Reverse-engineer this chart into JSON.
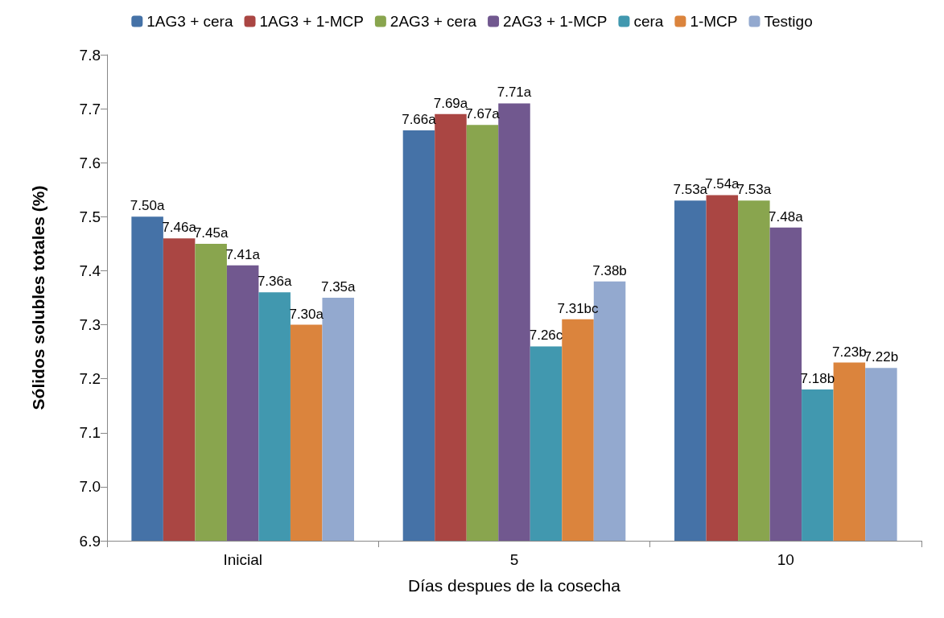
{
  "chart_data": {
    "type": "bar",
    "xlabel": "Días despues de la cosecha",
    "ylabel": "Sólidos solubles totales (%)",
    "categories": [
      "Inicial",
      "5",
      "10"
    ],
    "series": [
      {
        "name": "1AG3 + cera",
        "color": "#4572a7",
        "values": [
          7.5,
          7.66,
          7.53
        ],
        "value_labels": [
          "7.50a",
          "7.66a",
          "7.53a"
        ]
      },
      {
        "name": "1AG3 + 1-MCP",
        "color": "#aa4643",
        "values": [
          7.46,
          7.69,
          7.54
        ],
        "value_labels": [
          "7.46a",
          "7.69a",
          "7.54a"
        ]
      },
      {
        "name": "2AG3 + cera",
        "color": "#89a54e",
        "values": [
          7.45,
          7.67,
          7.53
        ],
        "value_labels": [
          "7.45a",
          "7.67a",
          "7.53a"
        ]
      },
      {
        "name": "2AG3 + 1-MCP",
        "color": "#71588f",
        "values": [
          7.41,
          7.71,
          7.48
        ],
        "value_labels": [
          "7.41a",
          "7.71a",
          "7.48a"
        ]
      },
      {
        "name": "cera",
        "color": "#4198af",
        "values": [
          7.36,
          7.26,
          7.18
        ],
        "value_labels": [
          "7.36a",
          "7.26c",
          "7.18b"
        ]
      },
      {
        "name": "1-MCP",
        "color": "#db843d",
        "values": [
          7.3,
          7.31,
          7.23
        ],
        "value_labels": [
          "7.30a",
          "7.31bc",
          "7.23b"
        ]
      },
      {
        "name": "Testigo",
        "color": "#93a9cf",
        "values": [
          7.35,
          7.38,
          7.22
        ],
        "value_labels": [
          "7.35a",
          "7.38b",
          "7.22b"
        ]
      }
    ],
    "ylim": [
      6.9,
      7.8
    ],
    "yticks": [
      {
        "value": 6.9,
        "label": "6.9"
      },
      {
        "value": 7.0,
        "label": "7.0"
      },
      {
        "value": 7.1,
        "label": "7.1"
      },
      {
        "value": 7.2,
        "label": "7.2"
      },
      {
        "value": 7.3,
        "label": "7.3"
      },
      {
        "value": 7.4,
        "label": "7.4"
      },
      {
        "value": 7.5,
        "label": "7.5"
      },
      {
        "value": 7.6,
        "label": "7.6"
      },
      {
        "value": 7.7,
        "label": "7.7"
      },
      {
        "value": 7.8,
        "label": "7.8"
      }
    ],
    "grid": false,
    "legend": "top"
  }
}
